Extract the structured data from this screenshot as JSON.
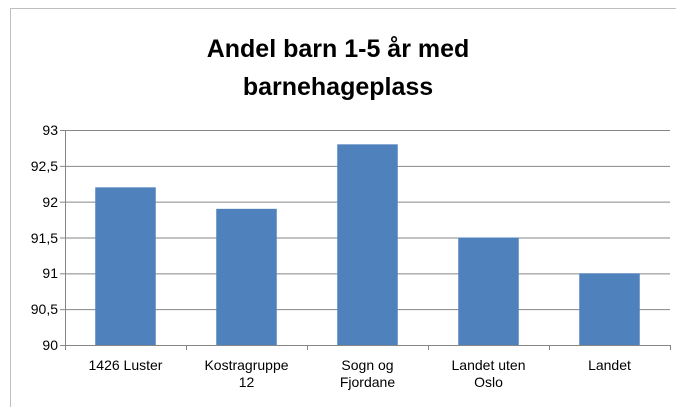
{
  "chart_data": {
    "type": "bar",
    "title": "Andel barn 1-5 år med barnehageplass",
    "categories": [
      "1426 Luster",
      "Kostragruppe 12",
      "Sogn og Fjordane",
      "Landet uten Oslo",
      "Landet"
    ],
    "values": [
      92.2,
      91.9,
      92.8,
      91.5,
      91.0
    ],
    "color": "#4f81bd",
    "ylim": [
      90,
      93
    ],
    "yticks": [
      90,
      {
        "value": 90.5,
        "label": "90,5"
      },
      91,
      {
        "value": 91.5,
        "label": "91,5"
      },
      92,
      {
        "value": 92.5,
        "label": "92,5"
      },
      93
    ],
    "grid": true
  }
}
